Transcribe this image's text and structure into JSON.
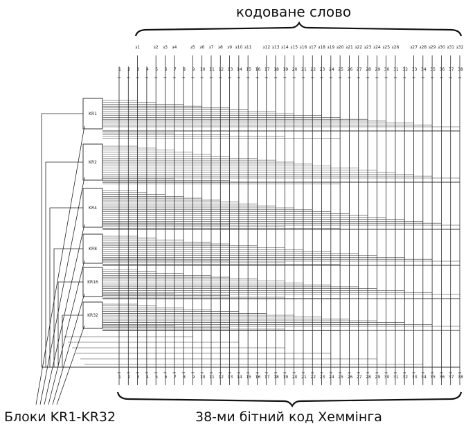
{
  "header": {
    "title": "кодоване  слово"
  },
  "captions": {
    "left": "Блоки KR1-KR32",
    "bottom": "38-ми бітний код Хеммінга"
  },
  "blocks": [
    {
      "label": "KR1"
    },
    {
      "label": "KR2"
    },
    {
      "label": "KR4"
    },
    {
      "label": "KR8"
    },
    {
      "label": "KR16"
    },
    {
      "label": "KR32"
    }
  ],
  "top_bits": [
    "з1",
    "з2",
    "з3",
    "з4",
    "з5",
    "з6",
    "з7",
    "з8",
    "з9",
    "з10",
    "з11",
    "з12",
    "з13",
    "з14",
    "з15",
    "з16",
    "з17",
    "з18",
    "з19",
    "з20",
    "з21",
    "з22",
    "з23",
    "з24",
    "з25",
    "з26",
    "з27",
    "з28",
    "з29",
    "з30",
    "з31",
    "з32"
  ],
  "bottom_bits": [
    "1",
    "2",
    "3",
    "4",
    "5",
    "6",
    "7",
    "8",
    "9",
    "10",
    "11",
    "12",
    "13",
    "14",
    "15",
    "16",
    "17",
    "18",
    "19",
    "20",
    "21",
    "22",
    "23",
    "24",
    "25",
    "26",
    "27",
    "28",
    "29",
    "30",
    "31",
    "32",
    "33",
    "34",
    "35",
    "36",
    "37",
    "38"
  ]
}
